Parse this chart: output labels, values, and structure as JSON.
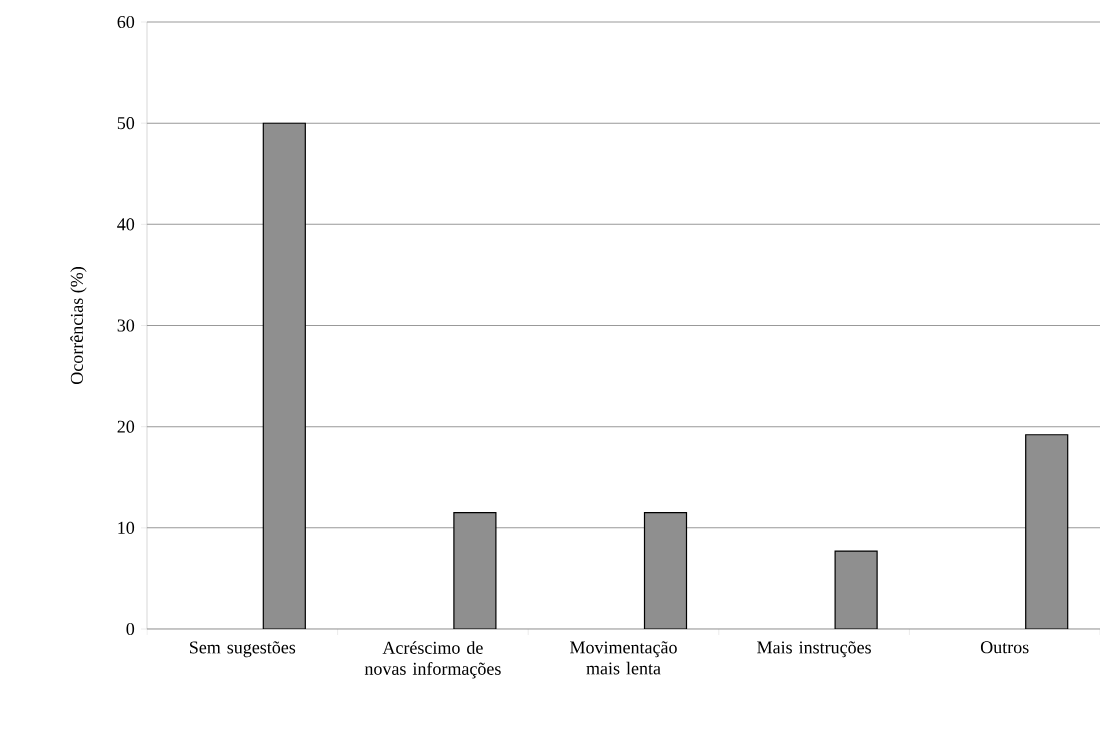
{
  "chart_data": {
    "type": "bar",
    "ylabel": "Ocorrências (%)",
    "categories": [
      "Sem sugestões",
      "Acréscimo de novas informações",
      "Movimentação mais lenta",
      "Mais instruções",
      "Outros"
    ],
    "values": [
      50,
      11.5,
      11.5,
      7.7,
      19.2
    ],
    "color": "#8f8f8f",
    "ylim": [
      0,
      60
    ],
    "yticks": [
      0,
      10,
      20,
      30,
      40,
      50,
      60
    ],
    "grid": "y"
  }
}
